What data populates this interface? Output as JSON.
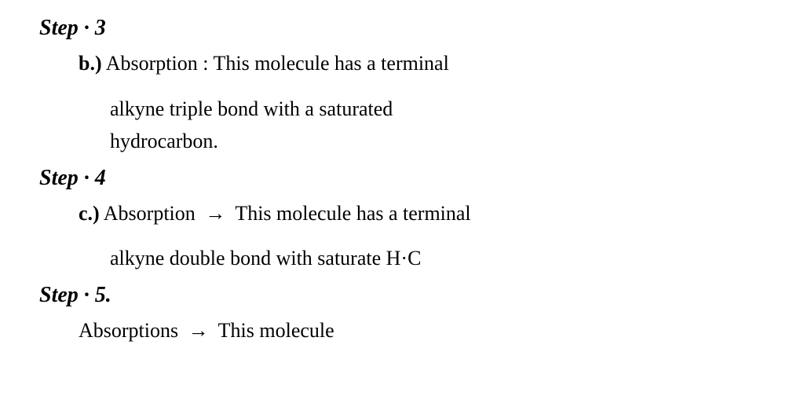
{
  "steps": {
    "step3": {
      "heading": "Step · 3",
      "item": {
        "label": "b.)",
        "term": "Absorption",
        "separator": ":",
        "line1": "This molecule has a terminal",
        "line2": "alkyne triple bond with a saturated",
        "line3": "hydrocarbon."
      }
    },
    "step4": {
      "heading": "Step · 4",
      "item": {
        "label": "c.)",
        "term": "Absorption",
        "separator": "→",
        "line1": "This molecule has a terminal",
        "line2": "alkyne double bond with saturate H·C"
      }
    },
    "step5": {
      "heading": "Step · 5.",
      "item": {
        "term": "Absorptions",
        "separator": "→",
        "line1": "This molecule"
      }
    }
  },
  "colors": {
    "text": "#000000",
    "background": "#ffffff"
  },
  "typography": {
    "font_family": "cursive",
    "heading_size": 28,
    "body_size": 26
  }
}
